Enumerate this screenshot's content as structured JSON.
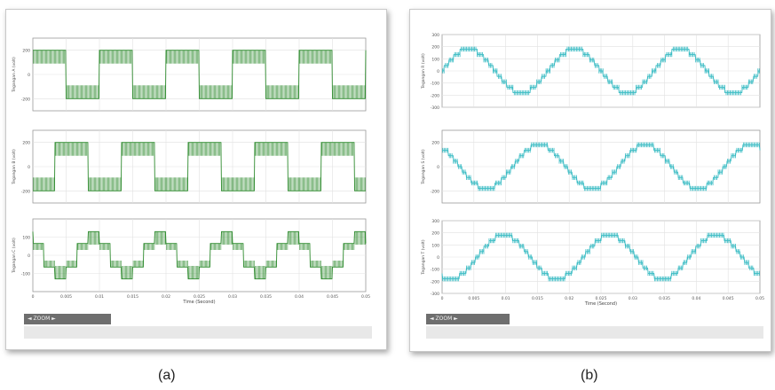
{
  "captions": {
    "a": "(a)",
    "b": "(b)"
  },
  "panel_a": {
    "status_label": "◄ ZOOM ►"
  },
  "panel_b": {
    "status_label": "◄ ZOOM ►"
  },
  "chart_data": [
    {
      "panel": "a",
      "type": "line",
      "color": "#2e8b2e",
      "xlabel": "",
      "ylabel": "Tegangan A (volt)",
      "ylim": [
        -300,
        300
      ],
      "yticks": [
        -200,
        0,
        200
      ],
      "ytick_labels": [
        "-200",
        "0",
        "200"
      ],
      "xticks": [],
      "xtick_labels": [],
      "grid": true,
      "waveform": "switched_two_level",
      "frequency_hz": 100,
      "phase_deg": 0,
      "levels": [
        200,
        -200
      ]
    },
    {
      "panel": "a",
      "type": "line",
      "color": "#2e8b2e",
      "xlabel": "",
      "ylabel": "Tegangan B (volt)",
      "ylim": [
        -300,
        300
      ],
      "yticks": [
        -200,
        0,
        200
      ],
      "ytick_labels": [
        "-200",
        "0",
        "200"
      ],
      "xticks": [],
      "xtick_labels": [],
      "grid": true,
      "waveform": "switched_two_level",
      "frequency_hz": 100,
      "phase_deg": -120,
      "levels": [
        200,
        -200
      ]
    },
    {
      "panel": "a",
      "type": "line",
      "color": "#2e8b2e",
      "xlabel": "Time (Second)",
      "ylabel": "Tegangan C (volt)",
      "ylim": [
        -200,
        200
      ],
      "yticks": [
        -100,
        0,
        100
      ],
      "ytick_labels": [
        "-100",
        "0",
        "100"
      ],
      "xticks": [
        0,
        0.005,
        0.01,
        0.015,
        0.02,
        0.025,
        0.03,
        0.035,
        0.04,
        0.045,
        0.05
      ],
      "xtick_labels": [
        "0",
        "0.005",
        "0.01",
        "0.015",
        "0.02",
        "0.025",
        "0.03",
        "0.035",
        "0.04",
        "0.045",
        "0.05"
      ],
      "grid": true,
      "waveform": "switched_six_step",
      "frequency_hz": 100,
      "phase_deg": 120,
      "levels": [
        130,
        65,
        0,
        -65,
        -130
      ]
    },
    {
      "panel": "b",
      "type": "line",
      "color": "#3bbcc4",
      "xlabel": "",
      "ylabel": "Tegangan R (volt)",
      "ylim": [
        -300,
        300
      ],
      "yticks": [
        -300,
        -200,
        -100,
        0,
        100,
        200,
        300
      ],
      "ytick_labels": [
        "-300",
        "-200",
        "-100",
        "0",
        "100",
        "200",
        "300"
      ],
      "xticks": [],
      "xtick_labels": [],
      "grid": true,
      "waveform": "staircase_sine",
      "frequency_hz": 60,
      "phase_deg": 0,
      "amplitude": 180
    },
    {
      "panel": "b",
      "type": "line",
      "color": "#3bbcc4",
      "xlabel": "",
      "ylabel": "Tegangan S (volt)",
      "ylim": [
        -300,
        300
      ],
      "yticks": [
        -200,
        0,
        200
      ],
      "ytick_labels": [
        "-200",
        "0",
        "200"
      ],
      "xticks": [],
      "xtick_labels": [],
      "grid": true,
      "waveform": "staircase_sine",
      "frequency_hz": 60,
      "phase_deg": 120,
      "amplitude": 180
    },
    {
      "panel": "b",
      "type": "line",
      "color": "#3bbcc4",
      "xlabel": "Time (Second)",
      "ylabel": "Tegangan T (volt)",
      "ylim": [
        -300,
        300
      ],
      "yticks": [
        -300,
        -200,
        -100,
        0,
        100,
        200,
        300
      ],
      "ytick_labels": [
        "-300",
        "-200",
        "-100",
        "0",
        "100",
        "200",
        "300"
      ],
      "xticks": [
        0,
        0.005,
        0.01,
        0.015,
        0.02,
        0.025,
        0.03,
        0.035,
        0.04,
        0.045,
        0.05
      ],
      "xtick_labels": [
        "0",
        "0.005",
        "0.01",
        "0.015",
        "0.02",
        "0.025",
        "0.03",
        "0.035",
        "0.04",
        "0.045",
        "0.05"
      ],
      "grid": true,
      "waveform": "staircase_sine",
      "frequency_hz": 60,
      "phase_deg": -120,
      "amplitude": 180
    }
  ]
}
